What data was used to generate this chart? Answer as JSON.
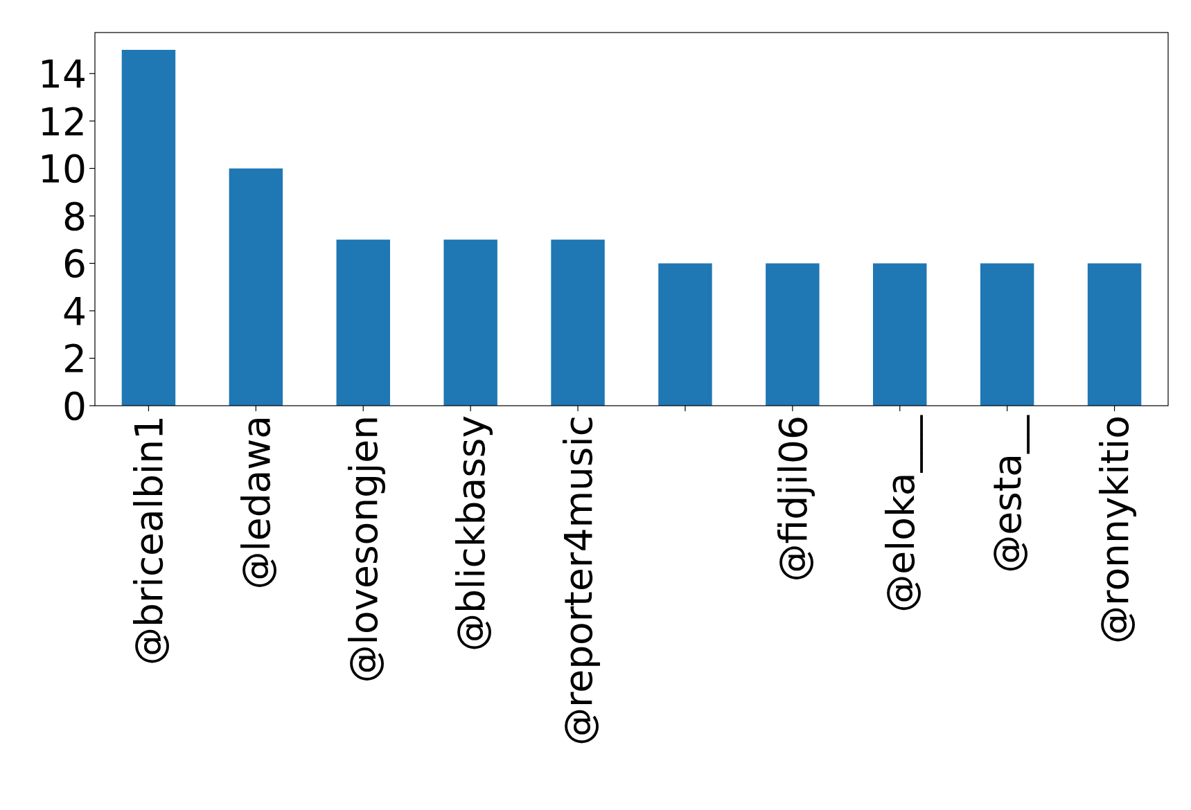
{
  "chart_data": {
    "type": "bar",
    "categories": [
      "@bricealbin1",
      "@ledawa",
      "@lovesongjen",
      "@blickbassy",
      "@reporter4music",
      null,
      "@fidjil06",
      "@eloka___",
      "@esta__",
      "@ronnykitio"
    ],
    "values": [
      15,
      10,
      7,
      7,
      7,
      6,
      6,
      6,
      6,
      6
    ],
    "color": "#1f77b4",
    "ylim": [
      0,
      15.73
    ],
    "yticks": [
      0,
      2,
      4,
      6,
      8,
      10,
      12,
      14
    ],
    "grid": false
  }
}
